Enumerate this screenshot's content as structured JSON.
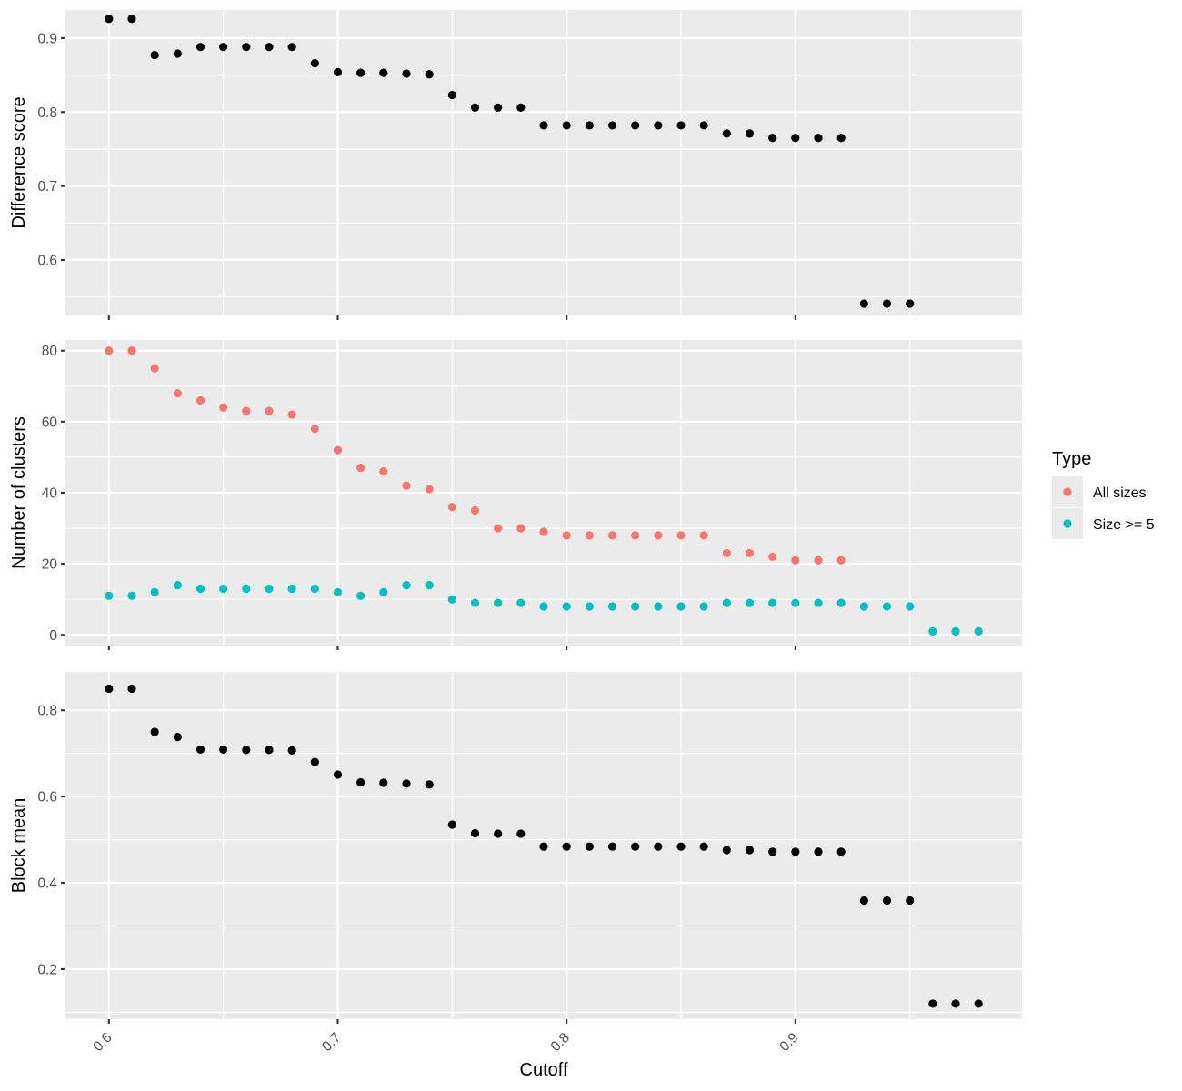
{
  "chart_data": [
    {
      "type": "scatter",
      "panel": "top",
      "ylabel": "Difference score",
      "xlim": [
        0.581,
        0.999
      ],
      "ylim": [
        0.525,
        0.938
      ],
      "ybreaks": [
        0.6,
        0.7,
        0.8,
        0.9
      ],
      "yminor": [
        0.55,
        0.65,
        0.75,
        0.85
      ],
      "series": [
        {
          "color": "#000000",
          "x": [
            0.6,
            0.61,
            0.62,
            0.63,
            0.64,
            0.65,
            0.66,
            0.67,
            0.68,
            0.69,
            0.7,
            0.71,
            0.72,
            0.73,
            0.74,
            0.75,
            0.76,
            0.77,
            0.78,
            0.79,
            0.8,
            0.81,
            0.82,
            0.83,
            0.84,
            0.85,
            0.86,
            0.87,
            0.88,
            0.89,
            0.9,
            0.91,
            0.92,
            0.93,
            0.94,
            0.95
          ],
          "y": [
            0.926,
            0.926,
            0.877,
            0.879,
            0.888,
            0.888,
            0.888,
            0.888,
            0.888,
            0.866,
            0.854,
            0.853,
            0.853,
            0.852,
            0.851,
            0.823,
            0.806,
            0.806,
            0.806,
            0.782,
            0.782,
            0.782,
            0.782,
            0.782,
            0.782,
            0.782,
            0.782,
            0.771,
            0.771,
            0.765,
            0.765,
            0.765,
            0.765,
            0.541,
            0.541,
            0.541
          ]
        }
      ]
    },
    {
      "type": "scatter",
      "panel": "middle",
      "ylabel": "Number of clusters",
      "xlim": [
        0.581,
        0.999
      ],
      "ylim": [
        -3,
        83
      ],
      "ybreaks": [
        0,
        20,
        40,
        60,
        80
      ],
      "yminor": [
        10,
        30,
        50,
        70
      ],
      "legend": {
        "title": "Type",
        "position": "right"
      },
      "series": [
        {
          "name": "All sizes",
          "color": "#F8766D",
          "x": [
            0.6,
            0.61,
            0.62,
            0.63,
            0.64,
            0.65,
            0.66,
            0.67,
            0.68,
            0.69,
            0.7,
            0.71,
            0.72,
            0.73,
            0.74,
            0.75,
            0.76,
            0.77,
            0.78,
            0.79,
            0.8,
            0.81,
            0.82,
            0.83,
            0.84,
            0.85,
            0.86,
            0.87,
            0.88,
            0.89,
            0.9,
            0.91,
            0.92
          ],
          "y": [
            80,
            80,
            75,
            68,
            66,
            64,
            63,
            63,
            62,
            58,
            52,
            47,
            46,
            42,
            41,
            36,
            35,
            30,
            30,
            29,
            28,
            28,
            28,
            28,
            28,
            28,
            28,
            23,
            23,
            22,
            21,
            21,
            21
          ]
        },
        {
          "name": "Size >= 5",
          "color": "#00BFC4",
          "x": [
            0.6,
            0.61,
            0.62,
            0.63,
            0.64,
            0.65,
            0.66,
            0.67,
            0.68,
            0.69,
            0.7,
            0.71,
            0.72,
            0.73,
            0.74,
            0.75,
            0.76,
            0.77,
            0.78,
            0.79,
            0.8,
            0.81,
            0.82,
            0.83,
            0.84,
            0.85,
            0.86,
            0.87,
            0.88,
            0.89,
            0.9,
            0.91,
            0.92,
            0.93,
            0.94,
            0.95,
            0.96,
            0.97,
            0.98
          ],
          "y": [
            11,
            11,
            12,
            14,
            13,
            13,
            13,
            13,
            13,
            13,
            12,
            11,
            12,
            14,
            14,
            10,
            9,
            9,
            9,
            8,
            8,
            8,
            8,
            8,
            8,
            8,
            8,
            9,
            9,
            9,
            9,
            9,
            9,
            8,
            8,
            8,
            1,
            1,
            1
          ]
        }
      ]
    },
    {
      "type": "scatter",
      "panel": "bottom",
      "ylabel": "Block mean",
      "xlabel": "Cutoff",
      "xlim": [
        0.581,
        0.999
      ],
      "ylim": [
        0.084,
        0.889
      ],
      "ybreaks": [
        0.2,
        0.4,
        0.6,
        0.8
      ],
      "yminor": [
        0.1,
        0.3,
        0.5,
        0.7
      ],
      "xbreaks": [
        0.6,
        0.7,
        0.8,
        0.9
      ],
      "xtick_labels": [
        "0.6",
        "0.7",
        "0.8",
        "0.9"
      ],
      "xminor": [
        0.65,
        0.75,
        0.85,
        0.95
      ],
      "series": [
        {
          "color": "#000000",
          "x": [
            0.6,
            0.61,
            0.62,
            0.63,
            0.64,
            0.65,
            0.66,
            0.67,
            0.68,
            0.69,
            0.7,
            0.71,
            0.72,
            0.73,
            0.74,
            0.75,
            0.76,
            0.77,
            0.78,
            0.79,
            0.8,
            0.81,
            0.82,
            0.83,
            0.84,
            0.85,
            0.86,
            0.87,
            0.88,
            0.89,
            0.9,
            0.91,
            0.92,
            0.93,
            0.94,
            0.95,
            0.96,
            0.97,
            0.98
          ],
          "y": [
            0.85,
            0.85,
            0.75,
            0.738,
            0.709,
            0.709,
            0.708,
            0.708,
            0.707,
            0.68,
            0.651,
            0.633,
            0.632,
            0.63,
            0.628,
            0.535,
            0.515,
            0.514,
            0.514,
            0.484,
            0.484,
            0.484,
            0.484,
            0.484,
            0.484,
            0.484,
            0.484,
            0.476,
            0.476,
            0.472,
            0.472,
            0.472,
            0.472,
            0.359,
            0.359,
            0.359,
            0.12,
            0.12,
            0.12
          ]
        }
      ]
    }
  ]
}
